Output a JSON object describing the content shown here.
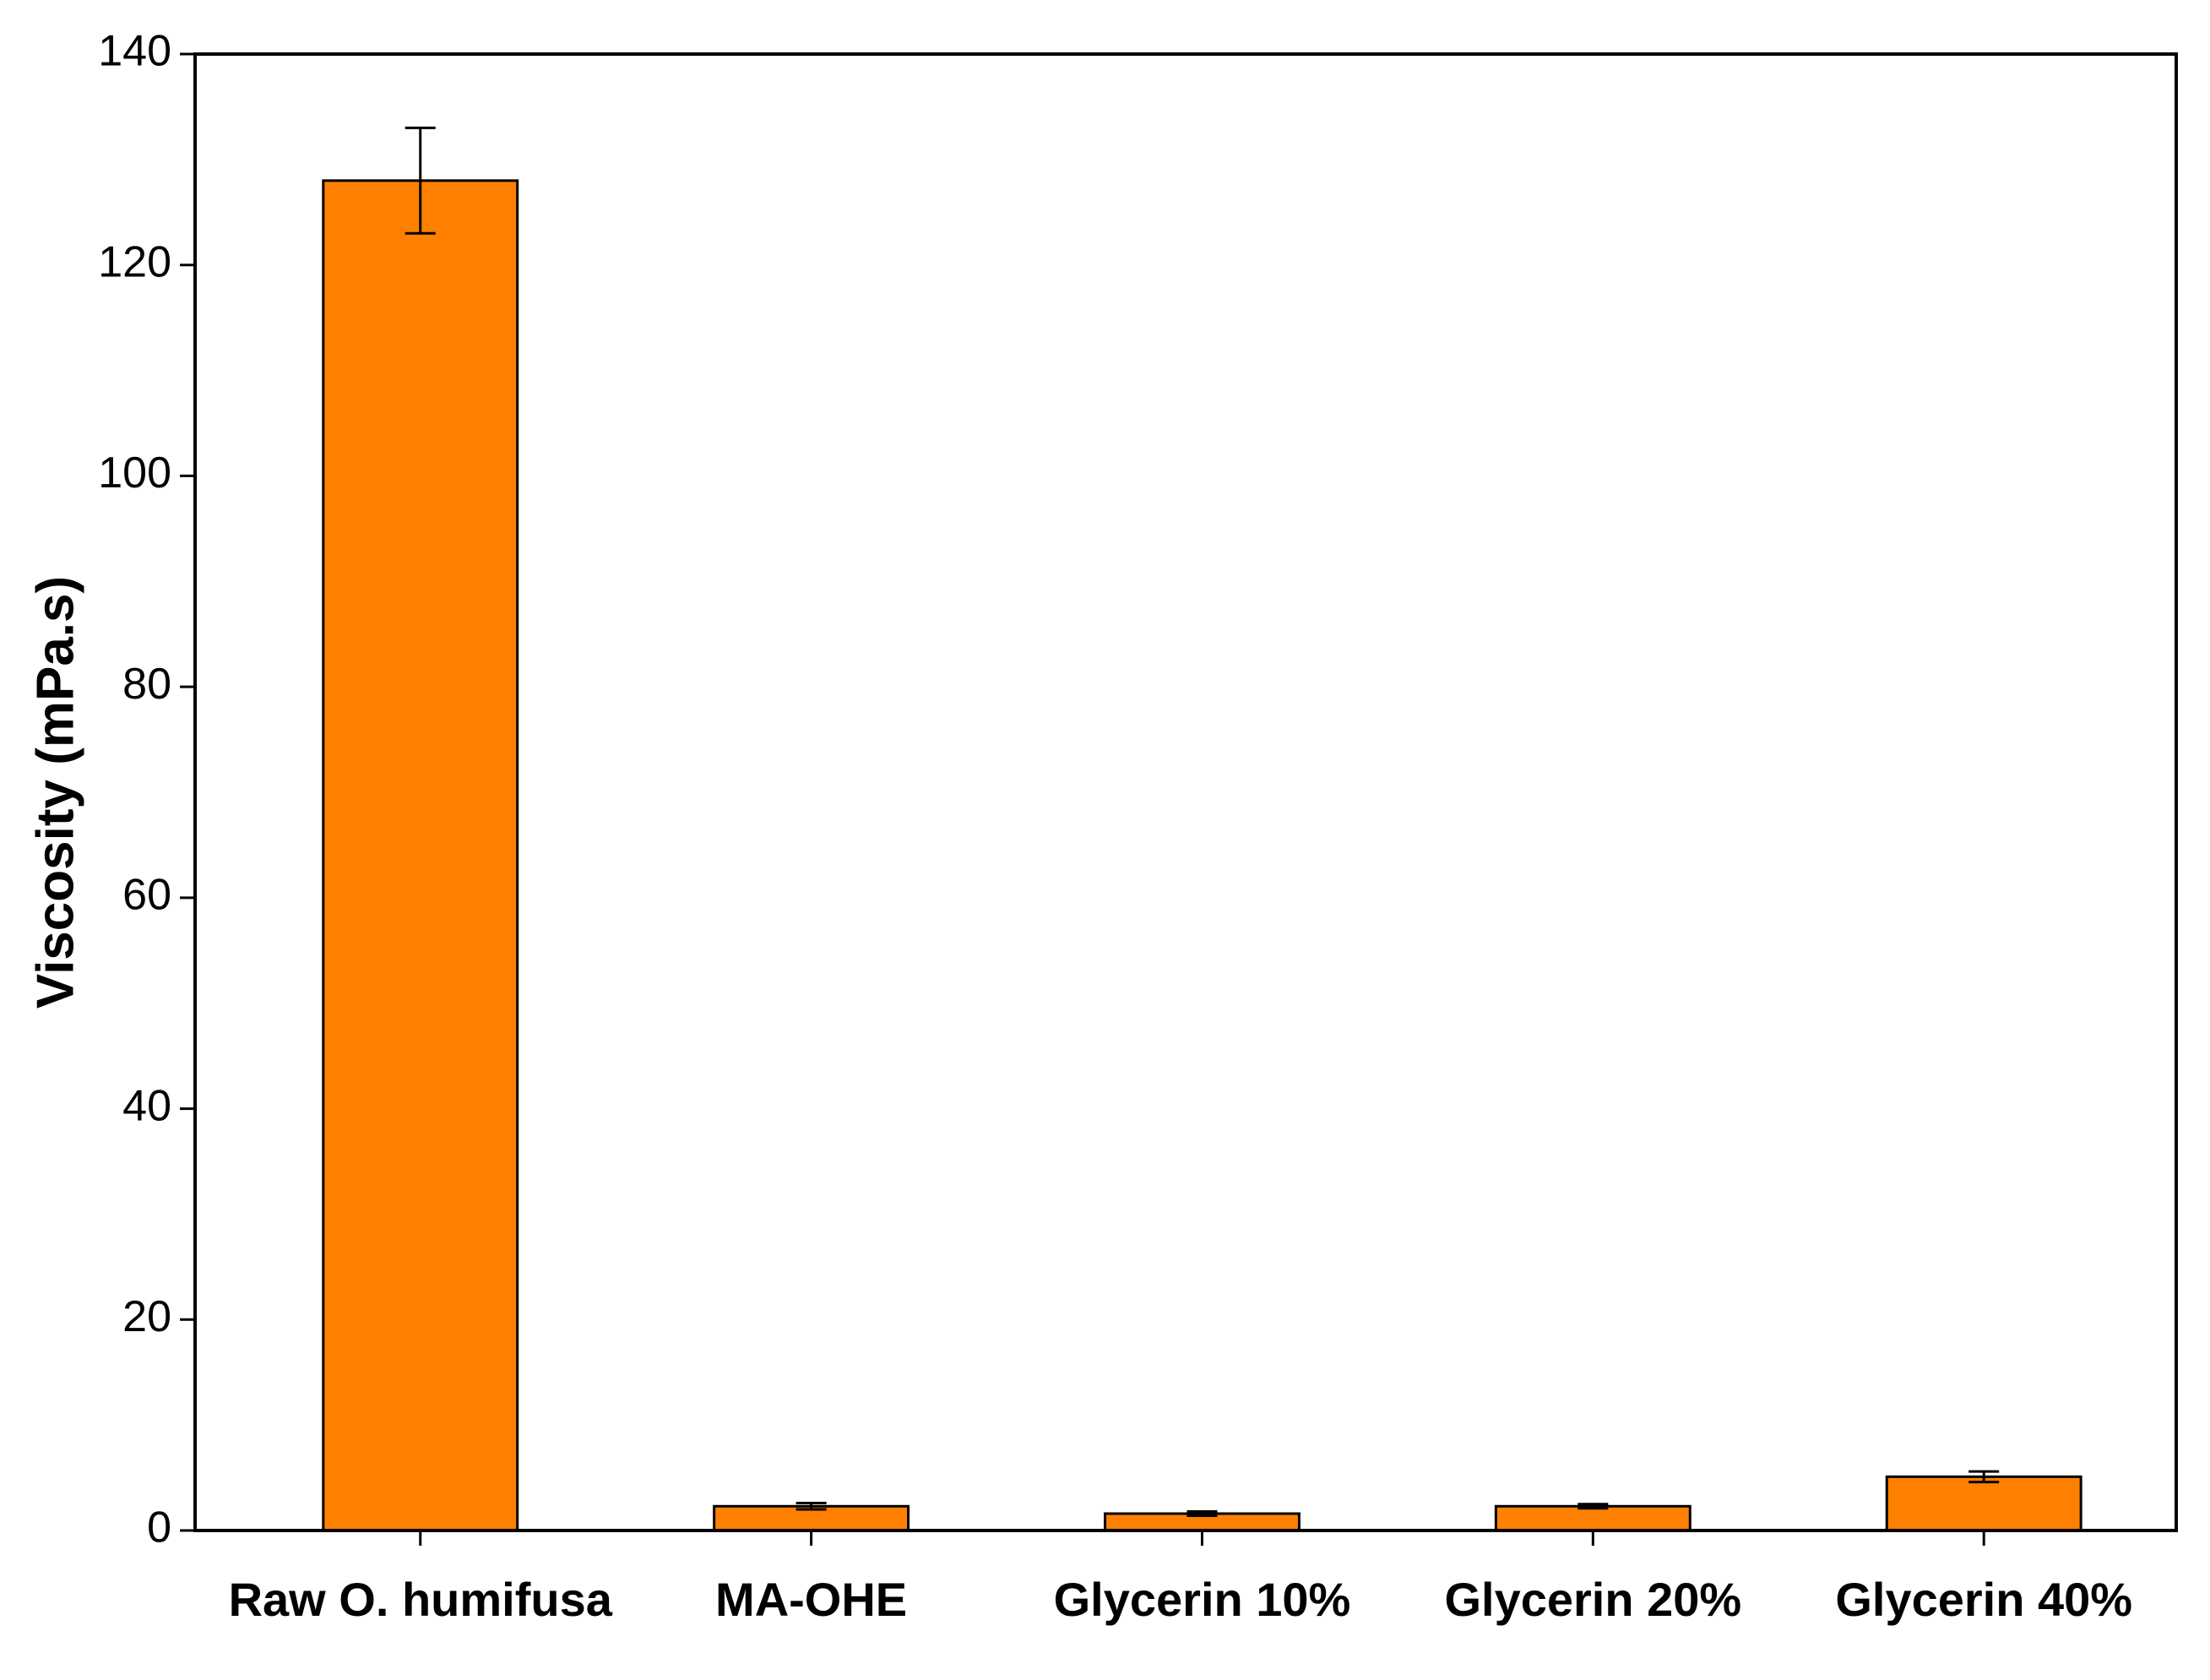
{
  "chart_data": {
    "type": "bar",
    "y_label": "Viscosity (mPa.s)",
    "categories": [
      "Raw O. humifusa",
      "MA-OHE",
      "Glycerin 10%",
      "Glycerin 20%",
      "Glycerin 40%"
    ],
    "values": [
      128,
      2.3,
      1.6,
      2.3,
      5.1
    ],
    "errors": [
      5,
      0.3,
      0.2,
      0.2,
      0.5
    ],
    "color": "#ff8000",
    "ylim": [
      0,
      140
    ],
    "yticks": [
      0,
      20,
      40,
      60,
      80,
      100,
      120,
      140
    ],
    "grid": false
  }
}
